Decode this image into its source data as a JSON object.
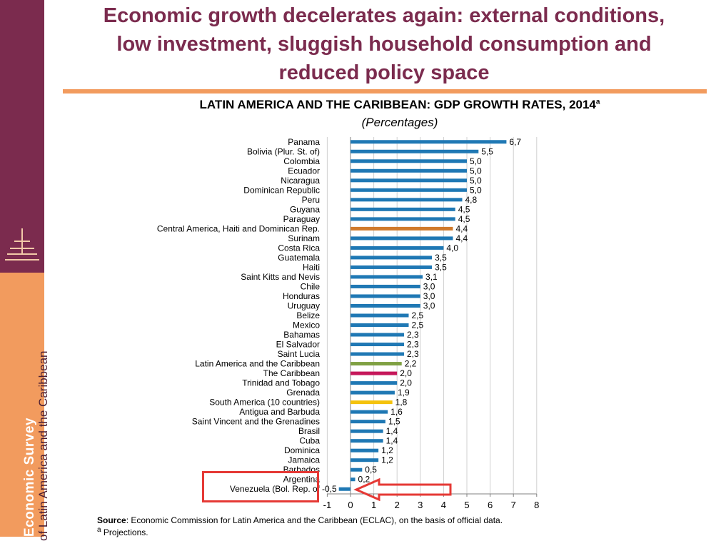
{
  "headline": {
    "line1": "Economic growth decelerates again: external conditions,",
    "line2": "low investment, sluggish household consumption and",
    "line3": "reduced policy space"
  },
  "sidebar": {
    "title": "Economic Survey",
    "subtitle": "of Latin America and the Caribbean"
  },
  "colors": {
    "default_bar": "#1f78b4",
    "central_america": "#d07a2a",
    "latin_america": "#7fa042",
    "caribbean": "#c5175a",
    "south_america": "#f4c20d",
    "highlight": "#e53935",
    "sidebar_top": "#7b2b4e",
    "sidebar_bottom": "#f29b5e"
  },
  "footer": {
    "source_label": "Source",
    "source_text": ": Economic Commission for Latin America and the Caribbean (ECLAC), on the basis of official data.",
    "note_mark": "a",
    "note_text": " Projections."
  },
  "chart_data": {
    "type": "bar",
    "orientation": "horizontal",
    "title": "LATIN AMERICA AND THE CARIBBEAN: GDP GROWTH RATES, 2014",
    "title_mark": "a",
    "subtitle": "(Percentages)",
    "xlim": [
      -1,
      8
    ],
    "x_ticks": [
      "-1",
      "0",
      "1",
      "2",
      "3",
      "4",
      "5",
      "6",
      "7",
      "8"
    ],
    "grid": "vertical",
    "categories": [
      "Panama",
      "Bolivia (Plur. St. of)",
      "Colombia",
      "Ecuador",
      "Nicaragua",
      "Dominican Republic",
      "Peru",
      "Guyana",
      "Paraguay",
      "Central America, Haiti and Dominican Rep.",
      "Surinam",
      "Costa Rica",
      "Guatemala",
      "Haiti",
      "Saint Kitts and Nevis",
      "Chile",
      "Honduras",
      "Uruguay",
      "Belize",
      "Mexico",
      "Bahamas",
      "El Salvador",
      "Saint Lucia",
      "Latin America and the Caribbean",
      "The Caribbean",
      "Trinidad and Tobago",
      "Grenada",
      "South America (10 countries)",
      "Antigua and Barbuda",
      "Saint Vincent and the Grenadines",
      "Brasil",
      "Cuba",
      "Dominica",
      "Jamaica",
      "Barbados",
      "Argentina",
      "Venezuela (Bol. Rep. of"
    ],
    "values": [
      6.7,
      5.5,
      5.0,
      5.0,
      5.0,
      5.0,
      4.8,
      4.5,
      4.5,
      4.4,
      4.4,
      4.0,
      3.5,
      3.5,
      3.1,
      3.0,
      3.0,
      3.0,
      2.5,
      2.5,
      2.3,
      2.3,
      2.3,
      2.2,
      2.0,
      2.0,
      1.9,
      1.8,
      1.6,
      1.5,
      1.4,
      1.4,
      1.2,
      1.2,
      0.5,
      0.2,
      -0.5
    ],
    "value_labels": [
      "6,7",
      "5,5",
      "5,0",
      "5,0",
      "5,0",
      "5,0",
      "4,8",
      "4,5",
      "4,5",
      "4,4",
      "4,4",
      "4,0",
      "3,5",
      "3,5",
      "3,1",
      "3,0",
      "3,0",
      "3,0",
      "2,5",
      "2,5",
      "2,3",
      "2,3",
      "2,3",
      "2,2",
      "2,0",
      "2,0",
      "1,9",
      "1,8",
      "1,6",
      "1,5",
      "1,4",
      "1,4",
      "1,2",
      "1,2",
      "0,5",
      "0,2",
      "-0,5"
    ],
    "bar_colors": [
      "#1f78b4",
      "#1f78b4",
      "#1f78b4",
      "#1f78b4",
      "#1f78b4",
      "#1f78b4",
      "#1f78b4",
      "#1f78b4",
      "#1f78b4",
      "#d07a2a",
      "#1f78b4",
      "#1f78b4",
      "#1f78b4",
      "#1f78b4",
      "#1f78b4",
      "#1f78b4",
      "#1f78b4",
      "#1f78b4",
      "#1f78b4",
      "#1f78b4",
      "#1f78b4",
      "#1f78b4",
      "#1f78b4",
      "#7fa042",
      "#c5175a",
      "#1f78b4",
      "#1f78b4",
      "#f4c20d",
      "#1f78b4",
      "#1f78b4",
      "#1f78b4",
      "#1f78b4",
      "#1f78b4",
      "#1f78b4",
      "#1f78b4",
      "#1f78b4",
      "#1f78b4"
    ],
    "highlighted_category": "Venezuela (Bol. Rep. of"
  }
}
